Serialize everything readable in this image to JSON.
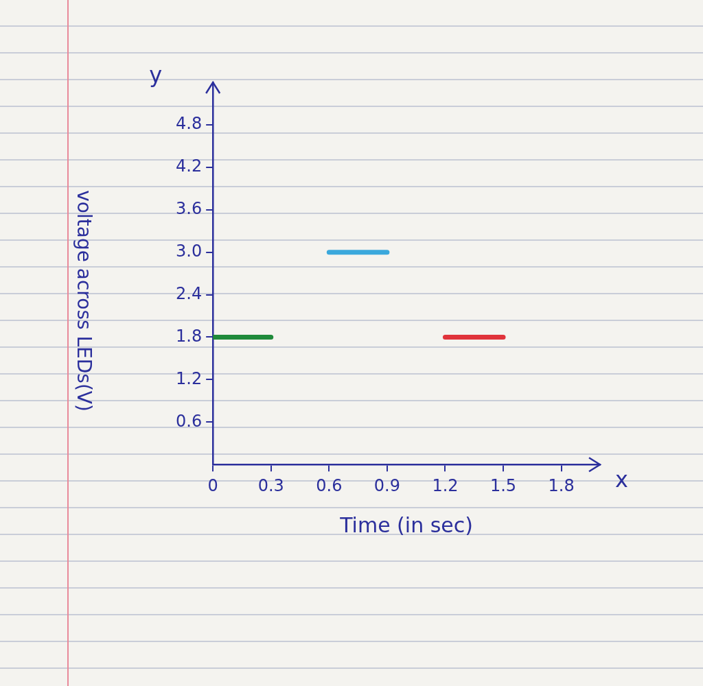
{
  "chart_data": {
    "type": "line",
    "x_label": "Time (in sec)",
    "y_label": "voltage across LEDs(V)",
    "axis_end_labels": {
      "x": "x",
      "y": "y"
    },
    "series": [
      {
        "color": "#1f8a3b",
        "x": [
          0,
          0.3
        ],
        "values": [
          1.8,
          1.8
        ]
      },
      {
        "color": "#3aa8dc",
        "x": [
          0.6,
          0.9
        ],
        "values": [
          3.0,
          3.0
        ]
      },
      {
        "color": "#e0333b",
        "x": [
          1.2,
          1.5
        ],
        "values": [
          1.8,
          1.8
        ]
      }
    ],
    "xlim": [
      0,
      2.0
    ],
    "xticks": [
      0,
      0.3,
      0.6,
      0.9,
      1.2,
      1.5,
      1.8
    ],
    "ylim": [
      0,
      5.4
    ],
    "yticks": [
      0.6,
      1.2,
      1.8,
      2.4,
      {
        "value": 3,
        "label": "3.0"
      },
      3.6,
      4.2,
      4.8
    ],
    "grid": false
  }
}
